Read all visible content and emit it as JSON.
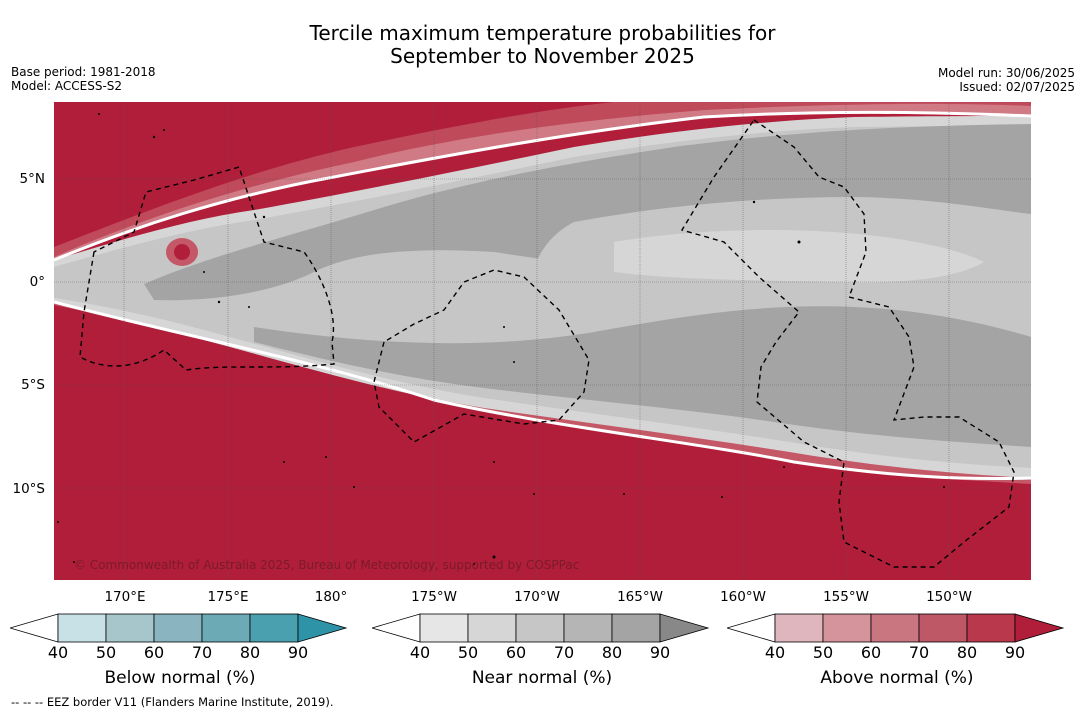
{
  "title_line1": "Tercile maximum temperature probabilities for",
  "title_line2": "September to November 2025",
  "base_period": "Base period: 1981-2018",
  "model": "Model: ACCESS-S2",
  "model_run": "Model run: 30/06/2025",
  "issued": "Issued: 02/07/2025",
  "copyright": "© Commonwealth of Australia 2025, Bureau of Meteorology, supported by COSPPac",
  "footer": "--  --  -- EEZ border V11 (Flanders Marine Institute, 2019).",
  "lat_ticks": [
    "5°N",
    "0°",
    "5°S",
    "10°S"
  ],
  "lon_ticks": [
    "170°E",
    "175°E",
    "180°",
    "175°W",
    "170°W",
    "165°W",
    "160°W",
    "155°W",
    "150°W"
  ],
  "colorbars": [
    {
      "title": "Below normal (%)",
      "ticks": [
        "40",
        "50",
        "60",
        "70",
        "80",
        "90"
      ],
      "colors": [
        "#ffffff",
        "#c8e1e7",
        "#a6c6cc",
        "#8ab5c0",
        "#6caab6",
        "#4aa0af",
        "#2e93a6"
      ]
    },
    {
      "title": "Near normal (%)",
      "ticks": [
        "40",
        "50",
        "60",
        "70",
        "80",
        "90"
      ],
      "colors": [
        "#ffffff",
        "#e6e6e6",
        "#d6d6d6",
        "#c6c6c6",
        "#b5b5b5",
        "#a4a4a4",
        "#888888"
      ]
    },
    {
      "title": "Above normal (%)",
      "ticks": [
        "40",
        "50",
        "60",
        "70",
        "80",
        "90"
      ],
      "colors": [
        "#ffffff",
        "#dfb6bd",
        "#d5939c",
        "#c97681",
        "#bf5866",
        "#b9384c",
        "#b01e3a"
      ]
    }
  ]
}
